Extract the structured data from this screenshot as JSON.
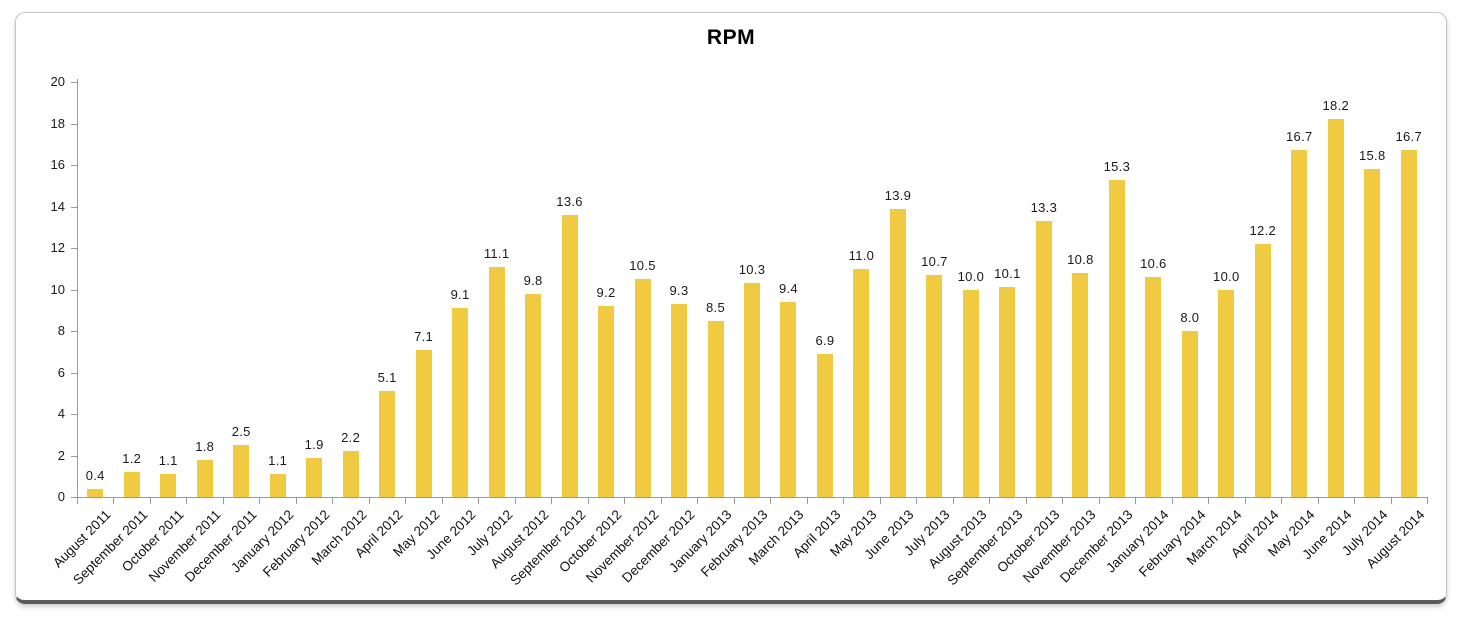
{
  "title": "RPM",
  "chart_data": {
    "type": "bar",
    "title": "RPM",
    "xlabel": "",
    "ylabel": "",
    "ylim": [
      0,
      20
    ],
    "ytick_step": 2,
    "grid": false,
    "legend": false,
    "bar_color": "#F0CB42",
    "axis_color": "#9a9a9a",
    "label_color": "#1a1a1a",
    "categories": [
      "August 2011",
      "September 2011",
      "October 2011",
      "November 2011",
      "December 2011",
      "January 2012",
      "February 2012",
      "March 2012",
      "April 2012",
      "May 2012",
      "June 2012",
      "July 2012",
      "August 2012",
      "September 2012",
      "October 2012",
      "November 2012",
      "December 2012",
      "January 2013",
      "February 2013",
      "March 2013",
      "April 2013",
      "May 2013",
      "June 2013",
      "July 2013",
      "August 2013",
      "September 2013",
      "October 2013",
      "November 2013",
      "December 2013",
      "January 2014",
      "February 2014",
      "March 2014",
      "April 2014",
      "May 2014",
      "June 2014",
      "July 2014",
      "August 2014"
    ],
    "values": [
      0.4,
      1.2,
      1.1,
      1.8,
      2.5,
      1.1,
      1.9,
      2.2,
      5.1,
      7.1,
      9.1,
      11.1,
      9.8,
      13.6,
      9.2,
      10.5,
      9.3,
      8.5,
      10.3,
      9.4,
      6.9,
      11.0,
      13.9,
      10.7,
      10.0,
      10.1,
      13.3,
      10.8,
      15.3,
      10.6,
      8.0,
      10.0,
      12.2,
      16.7,
      18.2,
      15.8,
      16.7
    ],
    "value_label_decimals": 1
  },
  "frame": {
    "border_color": "#c4c4c4",
    "bottom_edge_color": "#5a5a5a"
  }
}
